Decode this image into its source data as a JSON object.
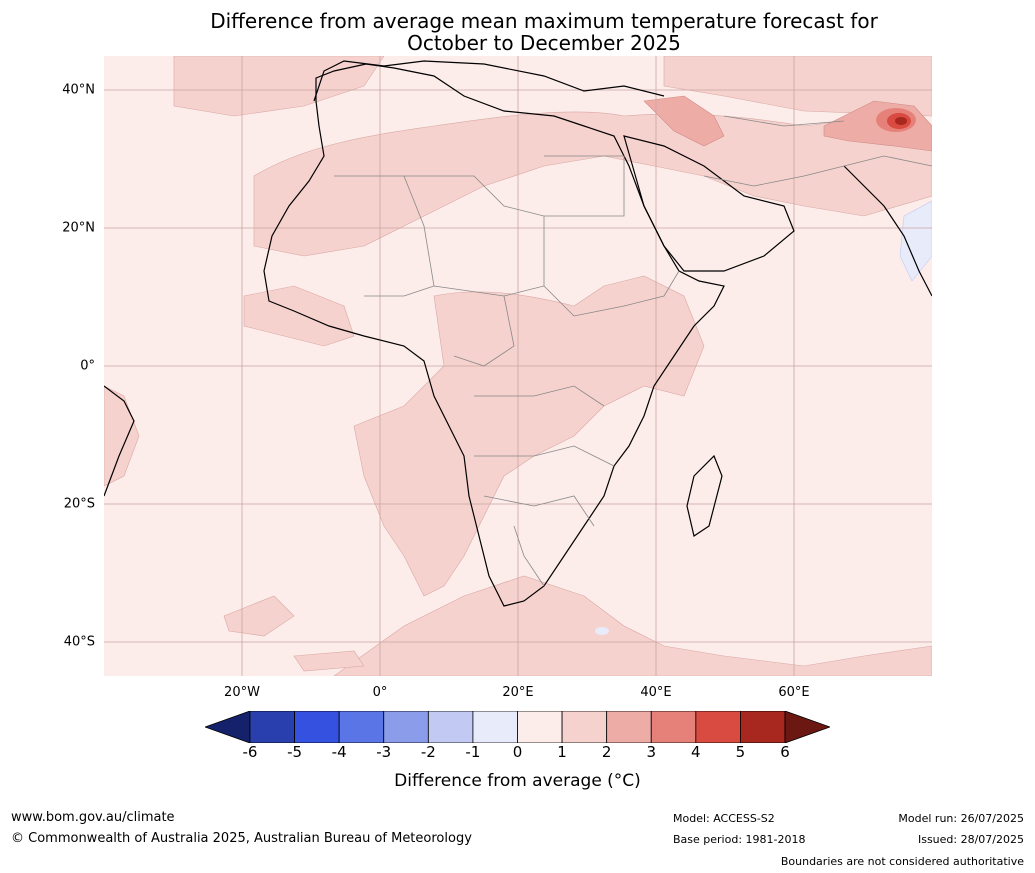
{
  "title_line1": "Difference from average mean maximum temperature forecast for",
  "title_line2": "October to December 2025",
  "map": {
    "lat_labels": [
      {
        "text": "40°N",
        "lat": 40
      },
      {
        "text": "20°N",
        "lat": 20
      },
      {
        "text": "0°",
        "lat": 0
      },
      {
        "text": "20°S",
        "lat": -20
      },
      {
        "text": "40°S",
        "lat": -40
      }
    ],
    "lon_labels": [
      {
        "text": "20°W",
        "lon": -20
      },
      {
        "text": "0°",
        "lon": 0
      },
      {
        "text": "20°E",
        "lon": 20
      },
      {
        "text": "40°E",
        "lon": 40
      },
      {
        "text": "60°E",
        "lon": 60
      }
    ],
    "lon_range": [
      -40,
      80
    ],
    "lat_range": [
      -45,
      45
    ]
  },
  "colorbar": {
    "ticks": [
      "-6",
      "-5",
      "-4",
      "-3",
      "-2",
      "-1",
      "0",
      "1",
      "2",
      "3",
      "4",
      "5",
      "6"
    ],
    "colors": [
      "#15226b",
      "#2a3fae",
      "#3451e0",
      "#5a76e6",
      "#8b9ceb",
      "#c2c9f3",
      "#e8ebfa",
      "#fcecea",
      "#f6d2ce",
      "#eeaca7",
      "#e6817a",
      "#d94a40",
      "#a8281f",
      "#6b1712"
    ],
    "label": "Difference from average (°C)"
  },
  "footer": {
    "website": "www.bom.gov.au/climate",
    "copyright": "© Commonwealth of Australia 2025, Australian Bureau of Meteorology",
    "model": "Model: ACCESS-S2",
    "base_period": "Base period: 1981-2018",
    "model_run": "Model run: 26/07/2025",
    "issued": "Issued: 28/07/2025",
    "disclaimer": "Boundaries are not considered authoritative"
  }
}
